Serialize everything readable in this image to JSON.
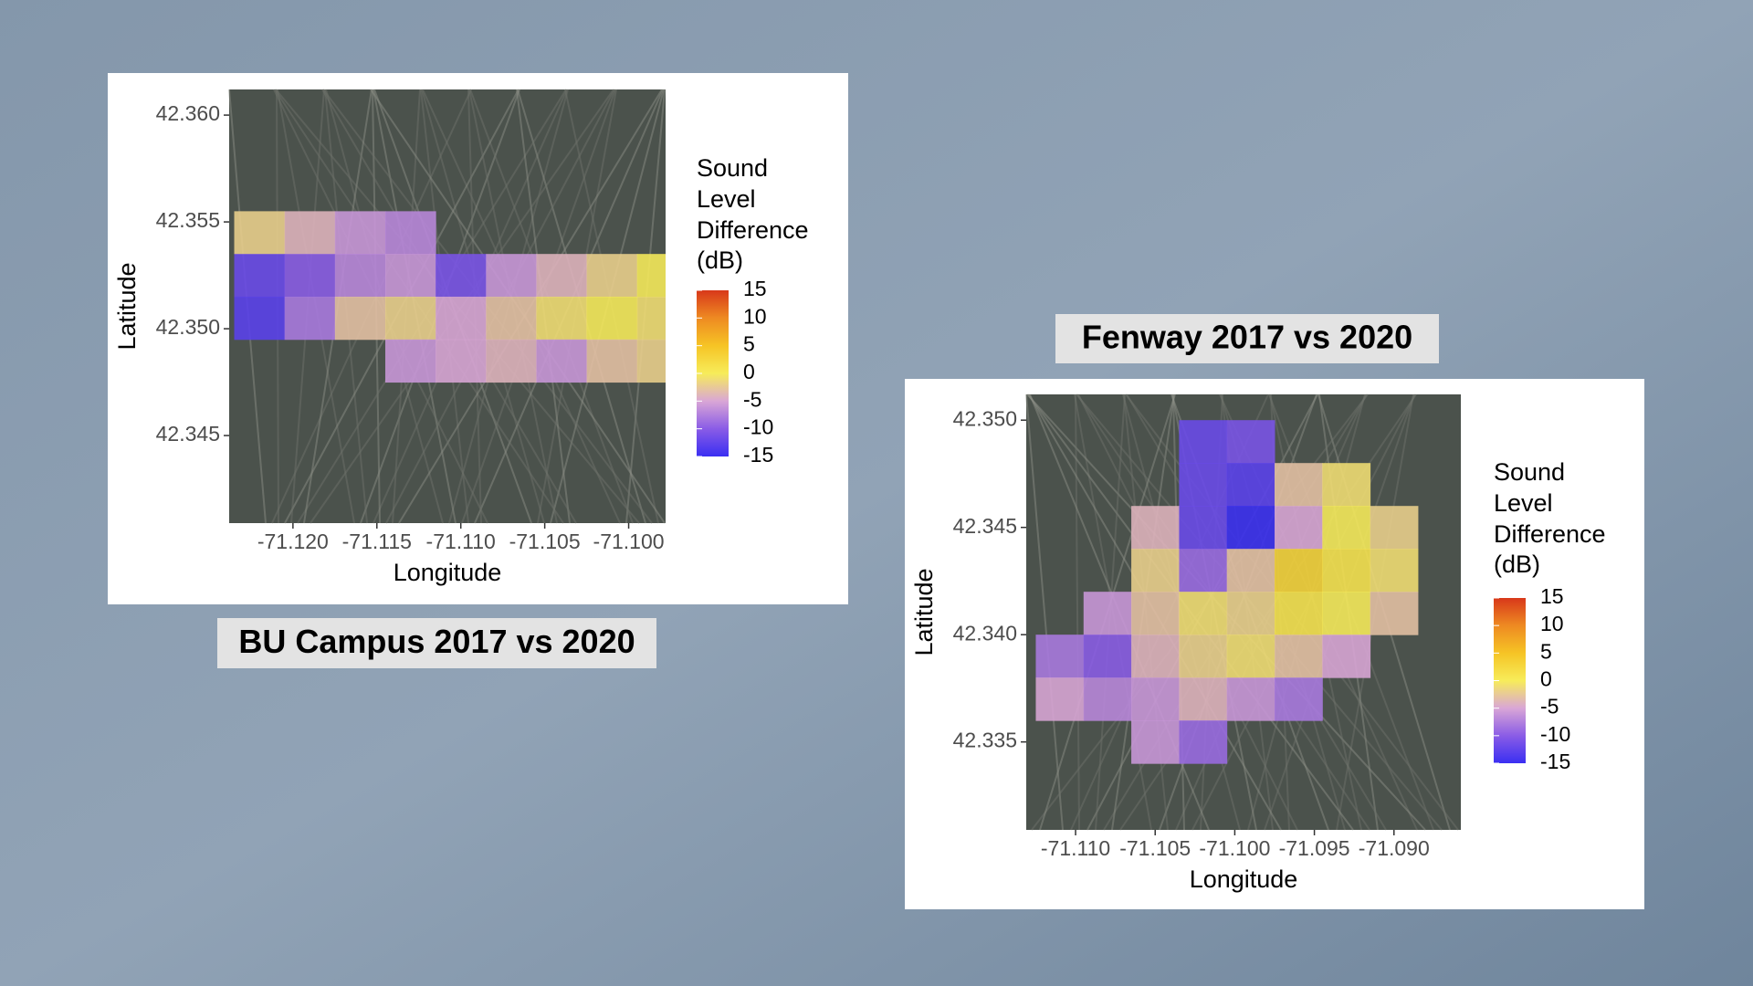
{
  "chart_data": [
    {
      "type": "heatmap",
      "title": "BU Campus 2017 vs 2020",
      "xlabel": "Longitude",
      "ylabel": "Latitude",
      "xlim": [
        -71.1238,
        -71.0978
      ],
      "ylim": [
        42.3409,
        42.3612
      ],
      "xticks": [
        {
          "value": -71.12,
          "label": "-71.120"
        },
        {
          "value": -71.115,
          "label": "-71.115"
        },
        {
          "value": -71.11,
          "label": "-71.110"
        },
        {
          "value": -71.105,
          "label": "-71.105"
        },
        {
          "value": -71.1,
          "label": "-71.100"
        }
      ],
      "yticks": [
        {
          "value": 42.345,
          "label": "42.345"
        },
        {
          "value": 42.35,
          "label": "42.350"
        },
        {
          "value": 42.355,
          "label": "42.355"
        },
        {
          "value": 42.36,
          "label": "42.360"
        }
      ],
      "x": [
        -71.122,
        -71.119,
        -71.116,
        -71.113,
        -71.11,
        -71.107,
        -71.104,
        -71.101,
        -71.098
      ],
      "y": [
        42.3545,
        42.3525,
        42.3505,
        42.3485
      ],
      "z": [
        [
          -2,
          -4,
          -6,
          -7,
          null,
          null,
          null,
          null,
          null
        ],
        [
          -12,
          -10,
          -7,
          -6,
          -11,
          -6,
          -4,
          -2,
          0
        ],
        [
          -13,
          -8,
          -3,
          -2,
          -5,
          -3,
          -1,
          0,
          -1
        ],
        [
          null,
          null,
          null,
          -6,
          -5,
          -4,
          -6,
          -3,
          -2
        ]
      ],
      "legend_title": "Sound Level Difference (dB)",
      "clim": [
        -15,
        15
      ],
      "cticks": [
        15,
        10,
        5,
        0,
        -5,
        -10,
        -15
      ],
      "colors": [
        "#3a2ff2",
        "#8a5ce6",
        "#d9a6d6",
        "#f7ec5a",
        "#f6c425",
        "#ee8a22",
        "#d8381a"
      ]
    },
    {
      "type": "heatmap",
      "title": "Fenway 2017 vs 2020",
      "xlabel": "Longitude",
      "ylabel": "Latitude",
      "xlim": [
        -71.1131,
        -71.0858
      ],
      "ylim": [
        42.3309,
        42.3512
      ],
      "xticks": [
        {
          "value": -71.11,
          "label": "-71.110"
        },
        {
          "value": -71.105,
          "label": "-71.105"
        },
        {
          "value": -71.1,
          "label": "-71.100"
        },
        {
          "value": -71.095,
          "label": "-71.095"
        },
        {
          "value": -71.09,
          "label": "-71.090"
        }
      ],
      "yticks": [
        {
          "value": 42.335,
          "label": "42.335"
        },
        {
          "value": 42.34,
          "label": "42.340"
        },
        {
          "value": 42.345,
          "label": "42.345"
        },
        {
          "value": 42.35,
          "label": "42.350"
        }
      ],
      "x": [
        -71.111,
        -71.108,
        -71.105,
        -71.102,
        -71.099,
        -71.096,
        -71.093,
        -71.09,
        -71.087
      ],
      "y": [
        42.349,
        42.347,
        42.345,
        42.343,
        42.341,
        42.339,
        42.337,
        42.335
      ],
      "z": [
        [
          null,
          null,
          null,
          -12,
          -11,
          null,
          null,
          null,
          null
        ],
        [
          null,
          null,
          null,
          -12,
          -13,
          -3,
          -1,
          null,
          null
        ],
        [
          null,
          null,
          -4,
          -12,
          -15,
          -5,
          0,
          -2,
          null
        ],
        [
          null,
          null,
          -2,
          -9,
          -3,
          3,
          1,
          -1,
          null
        ],
        [
          null,
          -6,
          -3,
          -1,
          -2,
          1,
          0,
          -3,
          null
        ],
        [
          -8,
          -10,
          -4,
          -2,
          -1,
          -3,
          -5,
          null,
          null
        ],
        [
          -5,
          -7,
          -6,
          -4,
          -6,
          -8,
          null,
          null,
          null
        ],
        [
          null,
          null,
          -6,
          -9,
          null,
          null,
          null,
          null,
          null
        ]
      ],
      "legend_title": "Sound Level Difference (dB)",
      "clim": [
        -15,
        15
      ],
      "cticks": [
        15,
        10,
        5,
        0,
        -5,
        -10,
        -15
      ],
      "colors": [
        "#3a2ff2",
        "#8a5ce6",
        "#d9a6d6",
        "#f7ec5a",
        "#f6c425",
        "#ee8a22",
        "#d8381a"
      ]
    }
  ]
}
